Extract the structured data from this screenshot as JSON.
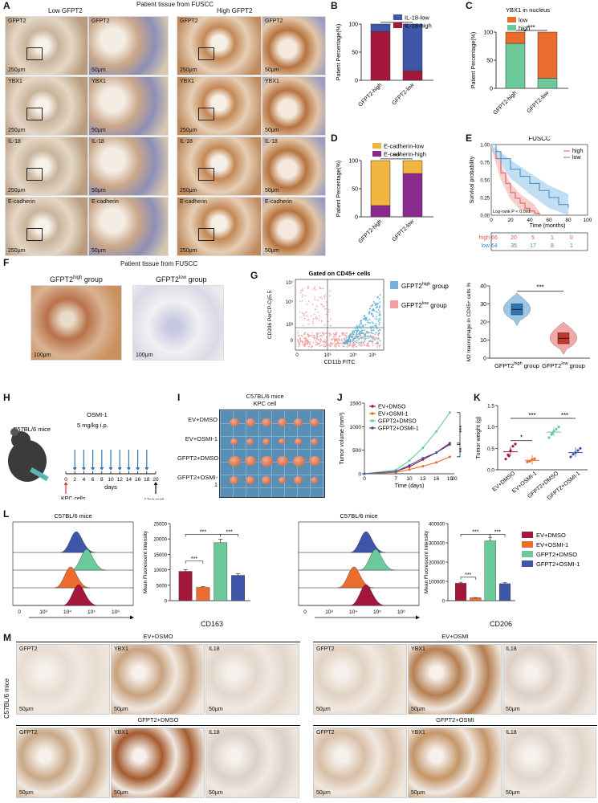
{
  "panels": {
    "A": {
      "label": "A",
      "header": "Patient tissue from FUSCC",
      "low_label": "Low GFPT2",
      "high_label": "High GFPT2",
      "rows": [
        "GFPT2",
        "YBX1",
        "IL-18",
        "E-cadherin"
      ],
      "scale_big": "250μm",
      "scale_small": "50μm"
    },
    "B": {
      "label": "B"
    },
    "C": {
      "label": "C"
    },
    "D": {
      "label": "D"
    },
    "E": {
      "label": "E"
    },
    "F": {
      "label": "F",
      "header": "Patient tissue from FUSCC",
      "high_group": "GFPT2",
      "high_sup": "high",
      "high_suffix": " group",
      "low_group": "GFPT2",
      "low_sup": "low",
      "low_suffix": " group",
      "scale": "100μm"
    },
    "G": {
      "label": "G"
    },
    "H": {
      "label": "H",
      "mice": "C57BL/6 mice",
      "drug": "OSMI-1",
      "dose": "5 mg/kg  i.p.",
      "days_label": "days",
      "kpc": "KPC cells",
      "cells": "2x10⁶ cells",
      "harvest": "Harvest",
      "ticks": [
        "0",
        "2",
        "4",
        "6",
        "8",
        "10",
        "12",
        "14",
        "16",
        "18",
        "20"
      ]
    },
    "I": {
      "label": "I",
      "title1": "C57BL/6 mice",
      "title2": "KPC cell",
      "rows": [
        "EV+DMSO",
        "EV+OSMI-1",
        "GFPT2+DMSO",
        "GFPT2+OSMI-1"
      ]
    },
    "J": {
      "label": "J"
    },
    "K": {
      "label": "K"
    },
    "L": {
      "label": "L",
      "mice1": "C57BL/6 mice",
      "mice2": "C57BL/6 mice",
      "marker1": "CD163",
      "marker2": "CD206",
      "hist_ticks": [
        "0",
        "10³",
        "10⁴",
        "10⁵",
        "10⁶"
      ],
      "hist_ticks2": [
        "0",
        "10³",
        "10⁴",
        "10⁵",
        "10⁶"
      ]
    },
    "M": {
      "label": "M",
      "side": "C57BL/6 mice",
      "groups": [
        "EV+DSMO",
        "EV+OSMI",
        "GFPT2+DMSO",
        "GFPT2+OSMI"
      ],
      "stains": [
        "GFPT2",
        "YBX1",
        "IL18"
      ],
      "scale": "50μm"
    }
  },
  "legend_groups": [
    {
      "name": "EV+DMSO",
      "color": "#a3173a"
    },
    {
      "name": "EV+OSMI-1",
      "color": "#ec6c2d"
    },
    {
      "name": "GFPT2+DMSO",
      "color": "#6cc99a"
    },
    {
      "name": "GFPT2+OSMI-1",
      "color": "#3e56a8"
    }
  ],
  "chart_data": [
    {
      "id": "B",
      "type": "bar",
      "stacked": true,
      "categories": [
        "GFPT2-high",
        "GFPT2-low"
      ],
      "series": [
        {
          "name": "IL-18-high",
          "color": "#a3173a",
          "values": [
            87,
            17
          ]
        },
        {
          "name": "IL-18-low",
          "color": "#3e56a8",
          "values": [
            13,
            83
          ]
        }
      ],
      "ylabel": "Patient Percentage(%)",
      "ylim": [
        0,
        100
      ],
      "yticks": [
        "0",
        "50",
        "100"
      ],
      "significance": "***",
      "legend": "top-right"
    },
    {
      "id": "C",
      "type": "bar",
      "stacked": true,
      "title": "YBX1 in nucleus",
      "categories": [
        "GFPT2-high",
        "GFPT2-low"
      ],
      "series": [
        {
          "name": "high",
          "color": "#6cc99a",
          "values": [
            80,
            18
          ]
        },
        {
          "name": "low",
          "color": "#ec6c2d",
          "values": [
            20,
            82
          ]
        }
      ],
      "ylabel": "Patient Percentage(%)",
      "ylim": [
        0,
        100
      ],
      "yticks": [
        "0",
        "50",
        "100"
      ],
      "significance": "***",
      "legend": "top"
    },
    {
      "id": "D",
      "type": "bar",
      "stacked": true,
      "categories": [
        "GFPT2-high",
        "GFPT2-low"
      ],
      "series": [
        {
          "name": "E-cadherin-high",
          "color": "#8b2a8e",
          "values": [
            20,
            77
          ]
        },
        {
          "name": "E-cadherin-low",
          "color": "#f1b540",
          "values": [
            80,
            23
          ]
        }
      ],
      "ylabel": "Patient Percentage(%)",
      "ylim": [
        0,
        100
      ],
      "yticks": [
        "0",
        "50",
        "100"
      ],
      "significance": "***",
      "legend": "top"
    },
    {
      "id": "E",
      "type": "line",
      "title": "FUSCC",
      "xlabel": "Time (months)",
      "ylabel": "Survival probability",
      "xlim": [
        0,
        100
      ],
      "ylim": [
        0,
        1
      ],
      "xticks": [
        "0",
        "20",
        "40",
        "60",
        "80",
        "100"
      ],
      "yticks": [
        "0.00",
        "0.25",
        "0.50",
        "0.75",
        "1.00"
      ],
      "annotation": "Log-rank P < 0.001",
      "series": [
        {
          "name": "high",
          "color": "#e05757",
          "x": [
            0,
            5,
            10,
            15,
            20,
            25,
            30,
            35,
            40,
            45,
            50
          ],
          "y": [
            1.0,
            0.8,
            0.6,
            0.45,
            0.32,
            0.24,
            0.17,
            0.1,
            0.06,
            0.03,
            0.0
          ]
        },
        {
          "name": "low",
          "color": "#3c8cc4",
          "x": [
            0,
            5,
            10,
            20,
            30,
            40,
            50,
            60,
            70,
            80
          ],
          "y": [
            1.0,
            0.9,
            0.8,
            0.65,
            0.55,
            0.45,
            0.35,
            0.25,
            0.15,
            0.1
          ]
        }
      ],
      "risk_table": {
        "high": [
          "66",
          "20",
          "5",
          "1",
          "0"
        ],
        "low": [
          "64",
          "35",
          "17",
          "8",
          "1"
        ]
      }
    },
    {
      "id": "G-scatter",
      "type": "scatter",
      "title": "Gated on CD45+ cells",
      "xlabel": "CD11b FITC",
      "ylabel": "CD206  PerCP-Cy5.5",
      "xticks": [
        "0",
        "10³",
        "10⁵",
        "10⁶"
      ],
      "yticks": [
        "0",
        "10³",
        "10⁵",
        "10⁷"
      ],
      "legend": [
        {
          "name": "GFPT2",
          "sup": "high",
          "suffix": " group",
          "color": "#78b0da"
        },
        {
          "name": "GFPT2",
          "sup": "low",
          "suffix": " group",
          "color": "#eea2a2"
        }
      ]
    },
    {
      "id": "G-violin",
      "type": "violin",
      "ylabel": "M2 macrophage in CD45+ cells %",
      "ylim": [
        0,
        40
      ],
      "yticks": [
        "0",
        "10",
        "20",
        "30",
        "40"
      ],
      "categories": [
        {
          "name": "GFPT2",
          "sup": "high",
          "suffix": " group"
        },
        {
          "name": "GFPT2",
          "sup": "low",
          "suffix": " group"
        }
      ],
      "medians": [
        27,
        11
      ],
      "significance": "***"
    },
    {
      "id": "J",
      "type": "line",
      "xlabel": "Time (days)",
      "ylabel": "Tumor volume (mm³)",
      "xlim": [
        0,
        20
      ],
      "ylim": [
        0,
        1500
      ],
      "xticks": [
        "0",
        "7",
        "10",
        "13",
        "16",
        "19",
        "20"
      ],
      "yticks": [
        "0",
        "500",
        "1000",
        "1500"
      ],
      "x": [
        0,
        7,
        10,
        13,
        16,
        19
      ],
      "series": [
        {
          "name": "EV+DMSO",
          "color": "#a3173a",
          "values": [
            0,
            50,
            150,
            300,
            450,
            650
          ]
        },
        {
          "name": "EV+OSMI-1",
          "color": "#ec6c2d",
          "values": [
            0,
            30,
            90,
            160,
            240,
            360
          ]
        },
        {
          "name": "GFPT2+DMSO",
          "color": "#6cc99a",
          "values": [
            0,
            80,
            280,
            550,
            900,
            1300
          ]
        },
        {
          "name": "GFPT2+OSMI-1",
          "color": "#3e56a8",
          "values": [
            0,
            50,
            180,
            330,
            450,
            620
          ]
        }
      ],
      "significance": [
        "***",
        "**"
      ]
    },
    {
      "id": "K",
      "type": "scatter",
      "ylabel": "Tumor weight (g)",
      "ylim": [
        0,
        1.5
      ],
      "yticks": [
        "0.0",
        "0.5",
        "1.0",
        "1.5"
      ],
      "categories": [
        "EV+DMSO",
        "EV+OSMI-1",
        "GFPT2+DMSO",
        "GFPT2+OSMI-1"
      ],
      "means": [
        0.42,
        0.22,
        0.88,
        0.4
      ],
      "significance": [
        "*",
        "***",
        "***"
      ]
    },
    {
      "id": "L-CD163",
      "type": "bar",
      "ylabel": "Mean Fluorescent Intensity",
      "ylim": [
        0,
        25000
      ],
      "yticks": [
        "0",
        "5000",
        "10000",
        "15000",
        "20000",
        "25000"
      ],
      "categories": [
        "EV+DMSO",
        "EV+OSMI-1",
        "GFPT2+DMSO",
        "GFPT2+OSMI-1"
      ],
      "values": [
        9500,
        4300,
        18800,
        8200
      ],
      "significance": [
        "***",
        "***",
        "***"
      ]
    },
    {
      "id": "L-CD206",
      "type": "bar",
      "ylabel": "Mean Fluorescent Intensity",
      "ylim": [
        0,
        400000
      ],
      "yticks": [
        "0",
        "100000",
        "200000",
        "300000",
        "400000"
      ],
      "categories": [
        "EV+DMSO",
        "EV+OSMI-1",
        "GFPT2+DMSO",
        "GFPT2+OSMI-1"
      ],
      "values": [
        90000,
        15000,
        310000,
        88000
      ],
      "significance": [
        "***",
        "***",
        "***"
      ]
    }
  ]
}
